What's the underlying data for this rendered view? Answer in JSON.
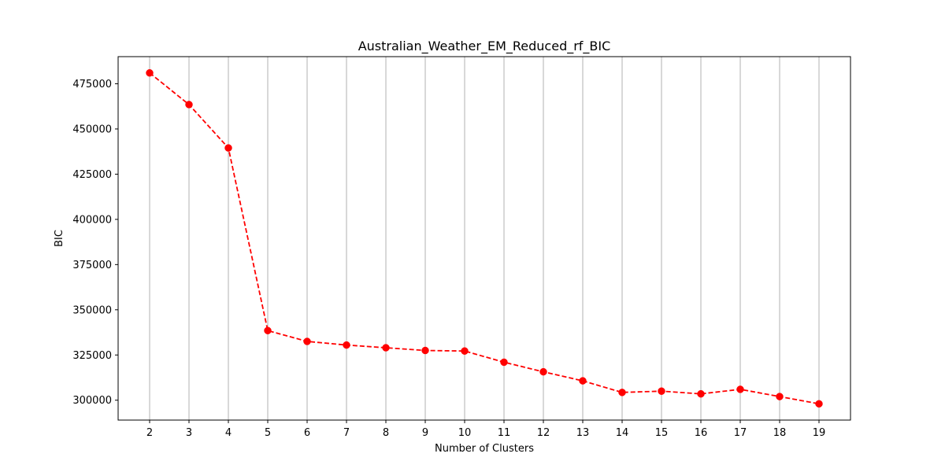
{
  "chart_data": {
    "type": "line",
    "title": "Australian_Weather_EM_Reduced_rf_BIC",
    "xlabel": "Number of Clusters",
    "ylabel": "BIC",
    "x": [
      2,
      3,
      4,
      5,
      6,
      7,
      8,
      9,
      10,
      11,
      12,
      13,
      14,
      15,
      16,
      17,
      18,
      19
    ],
    "series": [
      {
        "values": [
          481000,
          463500,
          439500,
          338500,
          332500,
          330500,
          329000,
          327500,
          327200,
          321000,
          315700,
          310700,
          304300,
          305000,
          303500,
          306000,
          302000,
          298000
        ],
        "color": "#ff0000",
        "line_style": "dashed",
        "marker": "circle"
      }
    ],
    "yticks": [
      300000,
      325000,
      350000,
      375000,
      400000,
      425000,
      450000,
      475000
    ],
    "xlim": [
      1.2,
      19.8
    ],
    "ylim": [
      289000,
      490000
    ],
    "grid": "vertical-x-only",
    "legend": "none"
  }
}
